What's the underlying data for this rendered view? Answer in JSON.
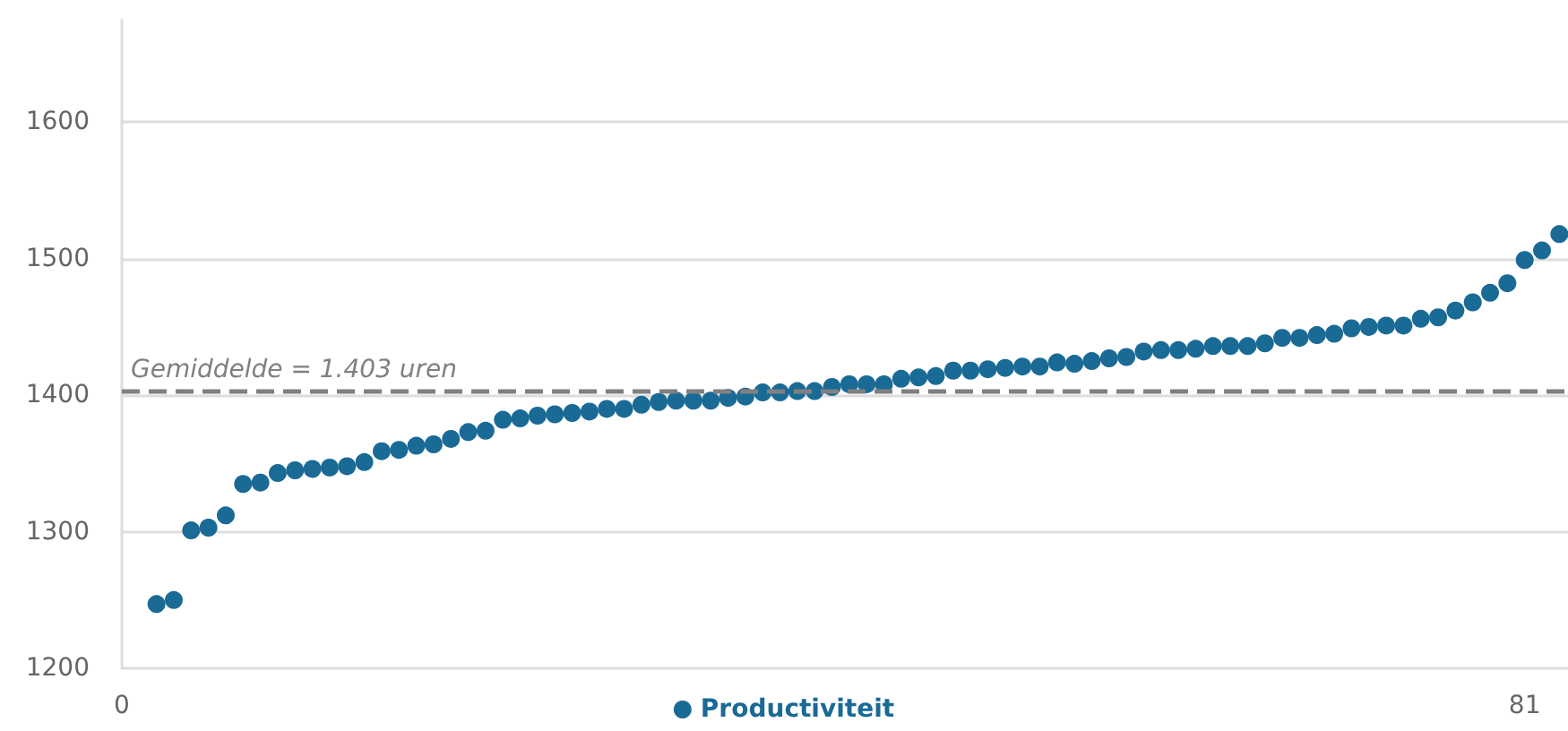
{
  "chart_data": {
    "type": "scatter",
    "x": [
      2,
      3,
      4,
      5,
      6,
      7,
      8,
      9,
      10,
      11,
      12,
      13,
      14,
      15,
      16,
      17,
      18,
      19,
      20,
      21,
      22,
      23,
      24,
      25,
      26,
      27,
      28,
      29,
      30,
      31,
      32,
      33,
      34,
      35,
      36,
      37,
      38,
      39,
      40,
      41,
      42,
      43,
      44,
      45,
      46,
      47,
      48,
      49,
      50,
      51,
      52,
      53,
      54,
      55,
      56,
      57,
      58,
      59,
      60,
      61,
      62,
      63,
      64,
      65,
      66,
      67,
      68,
      69,
      70,
      71,
      72,
      73,
      74,
      75,
      76,
      77,
      78,
      79,
      80,
      81,
      82,
      83
    ],
    "series": [
      {
        "name": "Productiviteit",
        "color": "#1a6a96",
        "values": [
          1247,
          1250,
          1301,
          1303,
          1312,
          1335,
          1336,
          1343,
          1345,
          1346,
          1347,
          1348,
          1351,
          1359,
          1360,
          1363,
          1364,
          1368,
          1373,
          1374,
          1382,
          1383,
          1385,
          1386,
          1387,
          1388,
          1390,
          1390,
          1393,
          1395,
          1396,
          1396,
          1396,
          1398,
          1399,
          1402,
          1402,
          1403,
          1403,
          1406,
          1408,
          1408,
          1408,
          1412,
          1413,
          1414,
          1418,
          1418,
          1419,
          1420,
          1421,
          1421,
          1424,
          1423,
          1425,
          1427,
          1428,
          1432,
          1433,
          1433,
          1434,
          1436,
          1436,
          1436,
          1438,
          1442,
          1442,
          1444,
          1445,
          1449,
          1450,
          1451,
          1451,
          1456,
          1457,
          1462,
          1468,
          1475,
          1482,
          1499,
          1506,
          1518
        ]
      }
    ],
    "xlim": [
      0,
      83.5
    ],
    "xticks": [
      0,
      81
    ],
    "ylim": [
      1200,
      1675
    ],
    "yticks": [
      1200,
      1300,
      1400,
      1500,
      1600
    ],
    "ref_lines": [
      {
        "axis": "y",
        "value": 1403,
        "label": "Gemiddelde = 1.403 uren",
        "color": "#808080",
        "line_style": "dashed"
      }
    ],
    "grid": "y",
    "legend": "bottom",
    "marker": "circle"
  }
}
